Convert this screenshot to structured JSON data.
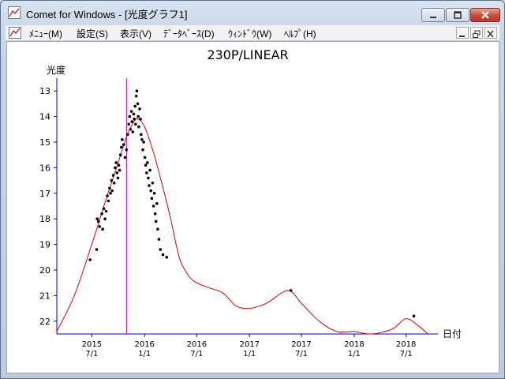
{
  "window": {
    "title": "Comet for Windows - [光度グラフ1]"
  },
  "menu": {
    "items": [
      "ﾒﾆｭｰ(M)",
      "設定(S)",
      "表示(V)",
      "ﾃﾞｰﾀﾍﾞｰｽ(D)",
      "ｳｨﾝﾄﾞｳ(W)",
      "ﾍﾙﾌﾟ(H)"
    ]
  },
  "colors": {
    "axis": "#0000c0",
    "perihelion_line": "#b000b0",
    "model_curve": "#d00000",
    "observations": "#000000"
  },
  "chart_data": {
    "type": "scatter",
    "title": "230P/LINEAR",
    "ylabel": "光度",
    "xlabel": "日付",
    "ylim": [
      22.5,
      12.5
    ],
    "y_inverted": true,
    "xlim": [
      "2015-03-01",
      "2018-10-20"
    ],
    "y_ticks": [
      13,
      14,
      15,
      16,
      17,
      18,
      19,
      20,
      21,
      22
    ],
    "x_ticks": [
      {
        "year": "2015",
        "date": "7/1",
        "value": "2015-07-01"
      },
      {
        "year": "2016",
        "date": "1/1",
        "value": "2016-01-01"
      },
      {
        "year": "2016",
        "date": "7/1",
        "value": "2016-07-01"
      },
      {
        "year": "2017",
        "date": "1/1",
        "value": "2017-01-01"
      },
      {
        "year": "2017",
        "date": "7/1",
        "value": "2017-07-01"
      },
      {
        "year": "2018",
        "date": "1/1",
        "value": "2018-01-01"
      },
      {
        "year": "2018",
        "date": "7/1",
        "value": "2018-07-01"
      }
    ],
    "perihelion_date": "2015-10-30",
    "model_curve": [
      [
        "2015-03-01",
        22.4
      ],
      [
        "2015-05-01",
        21.0
      ],
      [
        "2015-07-01",
        19.0
      ],
      [
        "2015-08-15",
        17.4
      ],
      [
        "2015-10-01",
        15.8
      ],
      [
        "2015-10-30",
        14.8
      ],
      [
        "2015-11-25",
        14.2
      ],
      [
        "2015-12-10",
        14.1
      ],
      [
        "2016-01-01",
        14.4
      ],
      [
        "2016-02-01",
        15.4
      ],
      [
        "2016-03-01",
        16.6
      ],
      [
        "2016-04-01",
        18.0
      ],
      [
        "2016-05-01",
        19.5
      ],
      [
        "2016-06-01",
        20.2
      ],
      [
        "2016-07-01",
        20.5
      ],
      [
        "2016-08-15",
        20.7
      ],
      [
        "2016-10-01",
        20.9
      ],
      [
        "2016-11-15",
        21.4
      ],
      [
        "2017-01-01",
        21.5
      ],
      [
        "2017-03-01",
        21.3
      ],
      [
        "2017-05-15",
        20.8
      ],
      [
        "2017-07-01",
        21.3
      ],
      [
        "2017-09-01",
        22.0
      ],
      [
        "2017-11-01",
        22.4
      ],
      [
        "2018-01-01",
        22.4
      ],
      [
        "2018-03-01",
        22.6
      ],
      [
        "2018-05-15",
        22.3
      ],
      [
        "2018-07-01",
        21.9
      ],
      [
        "2018-08-15",
        22.2
      ],
      [
        "2018-09-15",
        22.5
      ]
    ],
    "observations": [
      [
        "2015-06-25",
        19.6
      ],
      [
        "2015-07-18",
        19.2
      ],
      [
        "2015-07-20",
        18.0
      ],
      [
        "2015-07-24",
        18.1
      ],
      [
        "2015-07-28",
        18.3
      ],
      [
        "2015-08-05",
        17.8
      ],
      [
        "2015-08-08",
        18.4
      ],
      [
        "2015-08-12",
        17.6
      ],
      [
        "2015-08-16",
        18.0
      ],
      [
        "2015-08-20",
        17.7
      ],
      [
        "2015-08-24",
        17.1
      ],
      [
        "2015-08-28",
        17.3
      ],
      [
        "2015-09-01",
        16.8
      ],
      [
        "2015-09-04",
        17.0
      ],
      [
        "2015-09-08",
        16.5
      ],
      [
        "2015-09-10",
        16.9
      ],
      [
        "2015-09-14",
        16.3
      ],
      [
        "2015-09-17",
        16.6
      ],
      [
        "2015-09-20",
        16.0
      ],
      [
        "2015-09-24",
        15.8
      ],
      [
        "2015-09-27",
        16.2
      ],
      [
        "2015-09-30",
        16.4
      ],
      [
        "2015-10-03",
        15.9
      ],
      [
        "2015-10-06",
        16.1
      ],
      [
        "2015-10-09",
        15.5
      ],
      [
        "2015-10-12",
        15.2
      ],
      [
        "2015-10-15",
        14.9
      ],
      [
        "2015-10-20",
        15.1
      ],
      [
        "2015-10-25",
        15.6
      ],
      [
        "2015-10-30",
        15.3
      ],
      [
        "2015-11-03",
        14.7
      ],
      [
        "2015-11-07",
        14.3
      ],
      [
        "2015-11-10",
        14.0
      ],
      [
        "2015-11-13",
        14.5
      ],
      [
        "2015-11-16",
        13.8
      ],
      [
        "2015-11-18",
        14.2
      ],
      [
        "2015-11-21",
        14.6
      ],
      [
        "2015-11-24",
        13.9
      ],
      [
        "2015-11-26",
        14.1
      ],
      [
        "2015-11-29",
        13.6
      ],
      [
        "2015-12-01",
        14.3
      ],
      [
        "2015-12-03",
        13.2
      ],
      [
        "2015-12-05",
        13.0
      ],
      [
        "2015-12-08",
        13.5
      ],
      [
        "2015-12-10",
        14.0
      ],
      [
        "2015-12-12",
        14.4
      ],
      [
        "2015-12-15",
        13.7
      ],
      [
        "2015-12-18",
        14.1
      ],
      [
        "2015-12-20",
        14.7
      ],
      [
        "2015-12-23",
        14.9
      ],
      [
        "2015-12-26",
        15.3
      ],
      [
        "2015-12-29",
        15.0
      ],
      [
        "2016-01-02",
        15.6
      ],
      [
        "2016-01-05",
        15.9
      ],
      [
        "2016-01-08",
        16.2
      ],
      [
        "2016-01-11",
        15.8
      ],
      [
        "2016-01-14",
        16.4
      ],
      [
        "2016-01-17",
        16.7
      ],
      [
        "2016-01-20",
        16.1
      ],
      [
        "2016-01-23",
        16.9
      ],
      [
        "2016-01-26",
        17.2
      ],
      [
        "2016-01-29",
        16.6
      ],
      [
        "2016-02-01",
        17.5
      ],
      [
        "2016-02-04",
        17.0
      ],
      [
        "2016-02-07",
        17.8
      ],
      [
        "2016-02-10",
        18.1
      ],
      [
        "2016-02-13",
        17.4
      ],
      [
        "2016-02-16",
        18.4
      ],
      [
        "2016-02-20",
        18.8
      ],
      [
        "2016-02-25",
        19.2
      ],
      [
        "2016-03-05",
        19.4
      ],
      [
        "2016-03-18",
        19.5
      ],
      [
        "2017-05-25",
        20.8
      ],
      [
        "2018-07-28",
        21.8
      ]
    ]
  }
}
